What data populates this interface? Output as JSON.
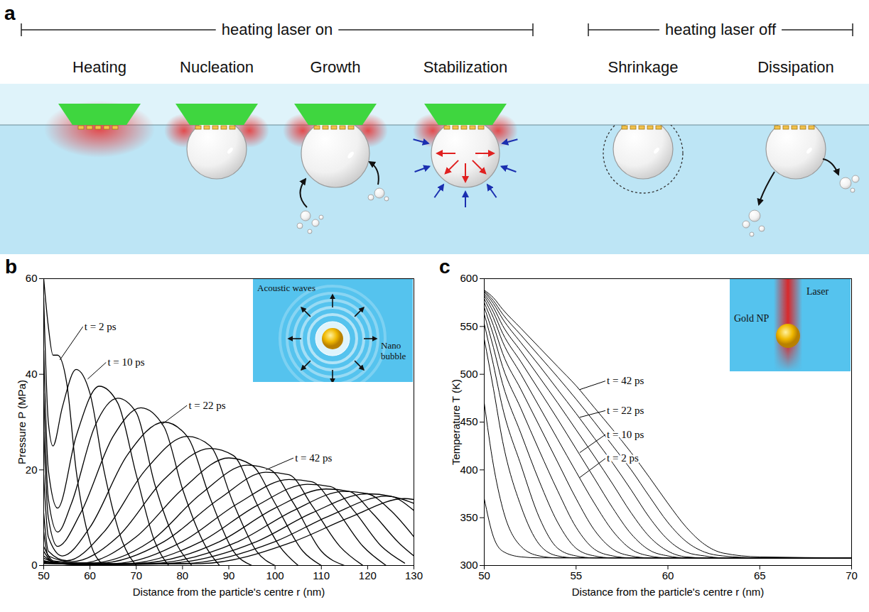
{
  "diagram": {
    "panel_label": "a",
    "phases": [
      {
        "text": "heating laser on",
        "stages": [
          "Heating",
          "Nucleation",
          "Growth",
          "Stabilization"
        ]
      },
      {
        "text": "heating laser off",
        "stages": [
          "Shrinkage",
          "Dissipation"
        ]
      }
    ]
  },
  "chart_data": [
    {
      "panel_label": "b",
      "type": "line",
      "color": "#000000",
      "x_label": "Distance from the particle's centre r (nm)",
      "y_label": "Pressure P (MPa)",
      "xlim": [
        50,
        130
      ],
      "xticks": [
        50,
        60,
        70,
        80,
        90,
        100,
        110,
        120,
        130
      ],
      "ylim": [
        0,
        60
      ],
      "yticks": [
        0,
        20,
        40,
        60
      ],
      "series": [
        {
          "x": [
            50,
            51,
            52,
            53,
            55,
            57,
            60,
            63
          ],
          "values": [
            60,
            50,
            44,
            44,
            38,
            20,
            5,
            0
          ]
        },
        {
          "x": [
            50,
            51,
            52,
            54,
            57,
            60,
            63,
            67,
            70
          ],
          "values": [
            56,
            30,
            25,
            33,
            41,
            36,
            20,
            5,
            0
          ]
        },
        {
          "x": [
            50,
            51,
            53,
            57,
            62,
            66,
            70,
            74,
            77
          ],
          "values": [
            45,
            20,
            12,
            27,
            37.5,
            34,
            19,
            5,
            0
          ]
        },
        {
          "x": [
            50,
            51,
            53,
            56,
            61,
            66,
            70,
            74,
            79,
            82
          ],
          "values": [
            36,
            14,
            7,
            13,
            29,
            35,
            32,
            17,
            4,
            0
          ]
        },
        {
          "x": [
            50,
            51,
            53,
            58,
            65,
            71,
            76,
            80,
            85,
            88
          ],
          "values": [
            28,
            10,
            4,
            11,
            27,
            33,
            29,
            16,
            4,
            0
          ]
        },
        {
          "x": [
            50,
            51,
            54,
            60,
            68,
            76,
            81,
            86,
            91,
            95
          ],
          "values": [
            19,
            6,
            2,
            8,
            23,
            30,
            27,
            14,
            3,
            0
          ]
        },
        {
          "x": [
            50,
            51,
            55,
            63,
            72,
            81,
            86,
            91,
            96,
            100
          ],
          "values": [
            11,
            3,
            1,
            7,
            20,
            27,
            25,
            13,
            3,
            0
          ]
        },
        {
          "x": [
            50,
            51,
            56,
            66,
            76,
            86,
            91,
            96,
            101,
            105
          ],
          "values": [
            7,
            2,
            0.8,
            6,
            18,
            24.5,
            23,
            13,
            4,
            0
          ]
        },
        {
          "x": [
            50,
            52,
            58,
            70,
            80,
            90,
            95,
            100,
            106,
            110
          ],
          "values": [
            4,
            1,
            0.5,
            6,
            16,
            22.5,
            21,
            13,
            3,
            0
          ]
        },
        {
          "x": [
            50,
            52,
            60,
            73,
            84,
            94,
            99,
            104,
            110,
            115
          ],
          "values": [
            3,
            0.8,
            0.5,
            5,
            15,
            21,
            20,
            13,
            3,
            0
          ]
        },
        {
          "x": [
            50,
            53,
            62,
            76,
            88,
            98,
            103,
            108,
            114,
            119
          ],
          "values": [
            2,
            0.5,
            0.5,
            5,
            14,
            19.5,
            19,
            12.5,
            4,
            0
          ]
        },
        {
          "x": [
            50,
            54,
            65,
            80,
            92,
            103,
            108,
            113,
            119,
            124
          ],
          "values": [
            1.5,
            0.4,
            0.4,
            5,
            13,
            18,
            17.5,
            12,
            4,
            0
          ]
        },
        {
          "x": [
            50,
            55,
            68,
            84,
            96,
            107,
            112,
            117,
            123,
            128
          ],
          "values": [
            1,
            0.3,
            0.4,
            5,
            12.5,
            17,
            16.5,
            11.5,
            4,
            0.5
          ]
        },
        {
          "x": [
            50,
            56,
            70,
            88,
            100,
            111,
            116,
            121,
            127,
            130
          ],
          "values": [
            1,
            0.3,
            0.4,
            5,
            12,
            16,
            15.5,
            11,
            4.5,
            2
          ]
        },
        {
          "x": [
            50,
            57,
            73,
            92,
            104,
            115,
            120,
            125,
            130
          ],
          "values": [
            0.8,
            0.2,
            0.4,
            5,
            11.5,
            15.5,
            15,
            11.5,
            6
          ]
        },
        {
          "x": [
            50,
            58,
            76,
            96,
            108,
            120,
            125,
            130
          ],
          "values": [
            0.6,
            0.2,
            0.4,
            5,
            11,
            15,
            14.5,
            11.5
          ]
        },
        {
          "x": [
            50,
            60,
            80,
            100,
            112,
            124,
            130
          ],
          "values": [
            0.5,
            0.2,
            0.4,
            5,
            10.5,
            14.5,
            13
          ]
        },
        {
          "x": [
            50,
            62,
            84,
            104,
            116,
            128,
            130
          ],
          "values": [
            0.4,
            0.2,
            0.4,
            5,
            10,
            14,
            13.8
          ]
        }
      ],
      "annotations": [
        {
          "text": "t = 2 ps",
          "x": 58.5,
          "y": 50,
          "x_end": 53.5,
          "y_end": 43
        },
        {
          "text": "t = 10 ps",
          "x": 63.5,
          "y": 42.5,
          "x_end": 59.5,
          "y_end": 39
        },
        {
          "text": "t = 22 ps",
          "x": 81,
          "y": 33.5,
          "x_end": 75.5,
          "y_end": 29.5
        },
        {
          "text": "t = 42 ps",
          "x": 104,
          "y": 22.5,
          "x_end": 98,
          "y_end": 20
        }
      ],
      "inset": {
        "labels": [
          "Acoustic waves",
          "Nano bubble"
        ]
      }
    },
    {
      "panel_label": "c",
      "type": "line",
      "color": "#000000",
      "x_label": "Distance from the particle's centre r (nm)",
      "y_label": "Temperature T (K)",
      "xlim": [
        50,
        70
      ],
      "xticks": [
        50,
        55,
        60,
        65,
        70
      ],
      "ylim": [
        300,
        600
      ],
      "yticks": [
        300,
        350,
        400,
        450,
        500,
        550,
        600
      ],
      "x": [
        50,
        50.5,
        51,
        52,
        53,
        54,
        55,
        56,
        57,
        58,
        59,
        60,
        61,
        62,
        63,
        65,
        70
      ],
      "series": [
        {
          "values": [
            588,
            580,
            568,
            548,
            528,
            508,
            488,
            465,
            442,
            418,
            392,
            365,
            340,
            322,
            313,
            309,
            308
          ]
        },
        {
          "values": [
            587,
            577,
            563,
            541,
            519,
            497,
            474,
            450,
            425,
            400,
            372,
            345,
            325,
            314,
            310,
            308,
            308
          ]
        },
        {
          "values": [
            586,
            574,
            558,
            533,
            509,
            484,
            459,
            433,
            407,
            379,
            350,
            327,
            314,
            310,
            308,
            308,
            308
          ]
        },
        {
          "values": [
            584,
            570,
            551,
            524,
            497,
            470,
            442,
            414,
            385,
            355,
            330,
            315,
            309,
            308,
            308,
            308,
            308
          ]
        },
        {
          "values": [
            582,
            565,
            543,
            513,
            483,
            453,
            422,
            391,
            360,
            333,
            316,
            310,
            308,
            308,
            308,
            308,
            308
          ]
        },
        {
          "values": [
            579,
            559,
            534,
            500,
            466,
            432,
            398,
            365,
            336,
            317,
            310,
            308,
            308,
            308,
            308,
            308,
            308
          ]
        },
        {
          "values": [
            575,
            551,
            522,
            484,
            446,
            408,
            370,
            337,
            317,
            310,
            308,
            308,
            308,
            308,
            308,
            308,
            308
          ]
        },
        {
          "values": [
            570,
            541,
            508,
            464,
            420,
            378,
            340,
            317,
            310,
            308,
            308,
            308,
            308,
            308,
            308,
            308,
            308
          ]
        },
        {
          "values": [
            563,
            528,
            490,
            438,
            388,
            345,
            318,
            310,
            308,
            308,
            308,
            308,
            308,
            308,
            308,
            308,
            308
          ]
        },
        {
          "values": [
            553,
            510,
            465,
            405,
            350,
            318,
            310,
            308,
            308,
            308,
            308,
            308,
            308,
            308,
            308,
            308,
            308
          ]
        },
        {
          "values": [
            537,
            485,
            430,
            362,
            322,
            310,
            308,
            308,
            308,
            308,
            308,
            308,
            308,
            308,
            308,
            308,
            308
          ]
        },
        {
          "values": [
            470,
            405,
            360,
            320,
            310,
            308,
            308,
            308,
            308,
            308,
            308,
            308,
            308,
            308,
            308,
            308,
            308
          ]
        },
        {
          "values": [
            370,
            330,
            315,
            309,
            308,
            308,
            308,
            308,
            308,
            308,
            308,
            308,
            308,
            308,
            308,
            308,
            308
          ]
        }
      ],
      "annotations": [
        {
          "text": "t = 42 ps",
          "x": 56.6,
          "y": 493,
          "x_end": 55.2,
          "y_end": 484
        },
        {
          "text": "t = 22 ps",
          "x": 56.6,
          "y": 462,
          "x_end": 55.2,
          "y_end": 455
        },
        {
          "text": "t = 10 ps",
          "x": 56.6,
          "y": 437,
          "x_end": 55.2,
          "y_end": 418
        },
        {
          "text": "t = 2 ps",
          "x": 56.6,
          "y": 412,
          "x_end": 55.2,
          "y_end": 392
        }
      ],
      "inset": {
        "labels": [
          "Laser",
          "Gold NP"
        ]
      }
    }
  ]
}
